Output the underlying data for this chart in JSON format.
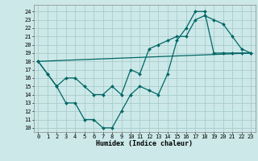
{
  "title": "",
  "xlabel": "Humidex (Indice chaleur)",
  "bg_color": "#cce8e8",
  "grid_color": "#aacccc",
  "line_color": "#006666",
  "xlim": [
    -0.5,
    23.5
  ],
  "ylim": [
    9.5,
    24.8
  ],
  "yticks": [
    10,
    11,
    12,
    13,
    14,
    15,
    16,
    17,
    18,
    19,
    20,
    21,
    22,
    23,
    24
  ],
  "xticks": [
    0,
    1,
    2,
    3,
    4,
    5,
    6,
    7,
    8,
    9,
    10,
    11,
    12,
    13,
    14,
    15,
    16,
    17,
    18,
    19,
    20,
    21,
    22,
    23
  ],
  "line1_x": [
    0,
    1,
    2,
    3,
    4,
    5,
    6,
    7,
    8,
    9,
    10,
    11,
    12,
    13,
    14,
    15,
    16,
    17,
    18,
    19,
    20,
    21,
    22,
    23
  ],
  "line1_y": [
    18,
    16.5,
    15,
    16,
    16,
    15,
    14,
    14,
    15,
    14,
    17,
    16.5,
    19.5,
    20,
    20.5,
    21,
    21,
    23,
    23.5,
    23,
    22.5,
    21,
    19.5,
    19
  ],
  "line2_x": [
    0,
    1,
    2,
    3,
    4,
    5,
    6,
    7,
    8,
    9,
    10,
    11,
    12,
    13,
    14,
    15,
    16,
    17,
    18,
    19,
    20,
    21,
    22,
    23
  ],
  "line2_y": [
    18,
    16.5,
    15,
    13,
    13,
    11,
    11,
    10,
    10,
    12,
    14,
    15,
    14.5,
    14,
    16.5,
    20.5,
    22,
    24,
    24,
    19,
    19,
    19,
    19,
    19
  ],
  "line3_x": [
    0,
    23
  ],
  "line3_y": [
    18,
    19
  ],
  "marker_size": 2.0,
  "line_width": 0.9,
  "tick_fontsize": 5.0,
  "xlabel_fontsize": 6.0
}
